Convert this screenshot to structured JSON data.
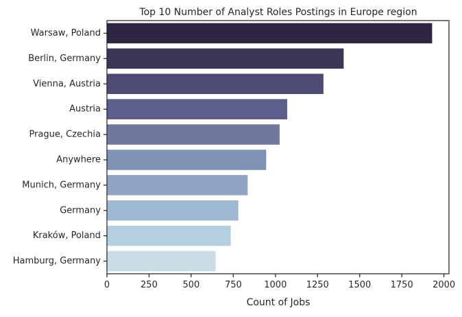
{
  "chart_data": {
    "type": "bar",
    "orientation": "horizontal",
    "title": "Top 10 Number of Analyst Roles Postings in Europe region",
    "xlabel": "Count of Jobs",
    "ylabel": "",
    "categories": [
      "Warsaw, Poland",
      "Berlin, Germany",
      "Vienna, Austria",
      "Austria",
      "Prague, Czechia",
      "Anywhere",
      "Munich, Germany",
      "Germany",
      "Kraków, Poland",
      "Hamburg, Germany"
    ],
    "values": [
      1930,
      1405,
      1285,
      1070,
      1025,
      945,
      835,
      780,
      735,
      645
    ],
    "xlim": [
      0,
      2030
    ],
    "xticks": [
      0,
      250,
      500,
      750,
      1000,
      1250,
      1500,
      1750,
      2000
    ],
    "xtick_labels": [
      "0",
      "250",
      "500",
      "750",
      "1000",
      "1250",
      "1500",
      "1750",
      "2000"
    ],
    "grid": false,
    "legend": "none",
    "colors": [
      "#2e2540",
      "#3b3558",
      "#4d4a74",
      "#5e5e8a",
      "#70789f",
      "#7f91b5",
      "#90a5c4",
      "#a1b8d2",
      "#b3cfe0",
      "#c8dde6"
    ]
  }
}
